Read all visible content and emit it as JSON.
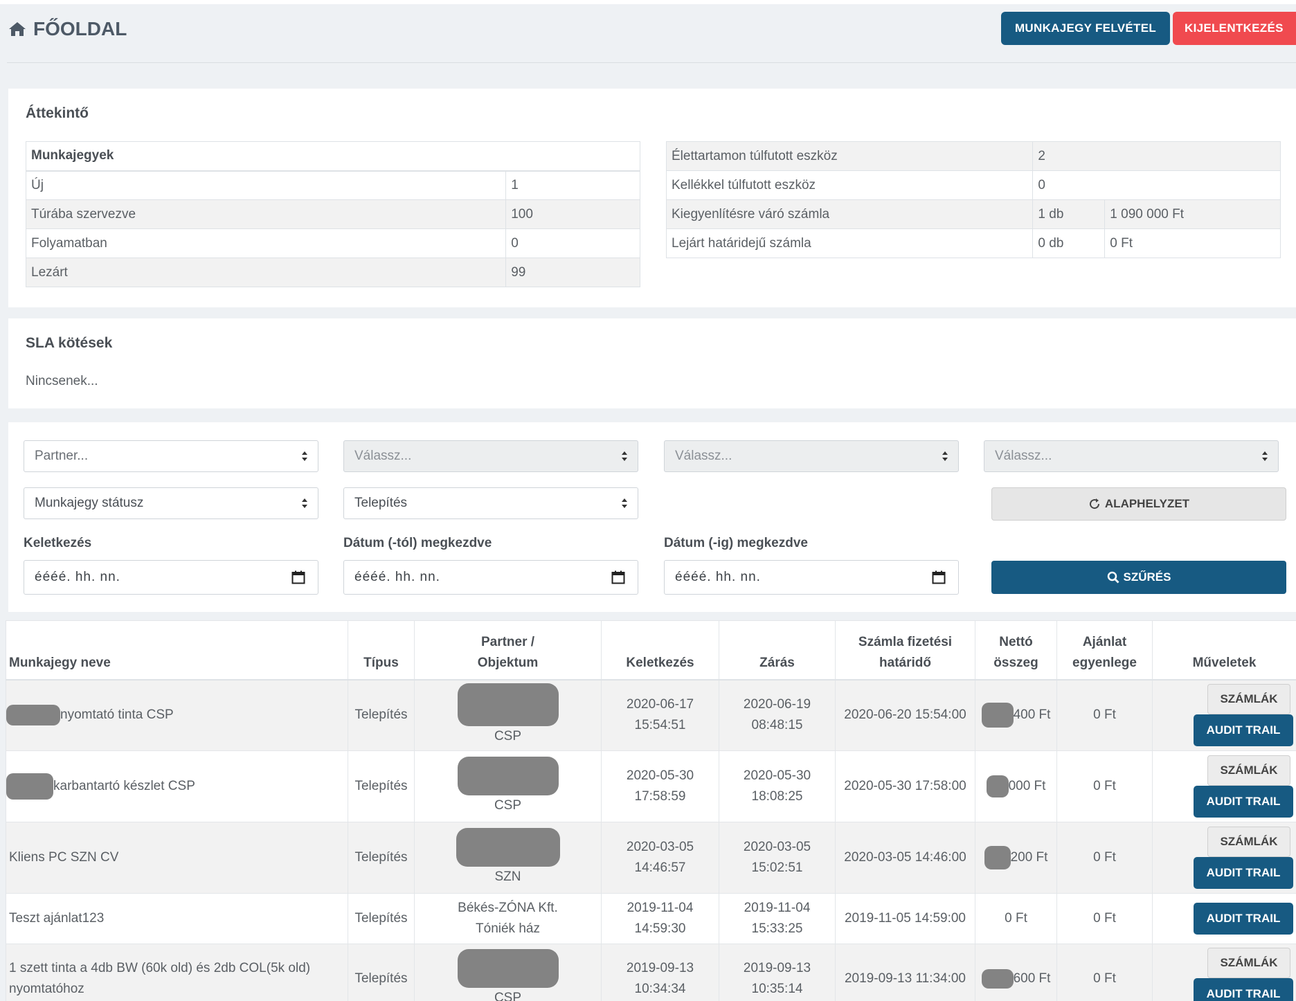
{
  "header": {
    "title": "FŐOLDAL",
    "new_ticket_label": "MUNKAJEGY FELVÉTEL",
    "logout_label": "KIJELENTKEZÉS"
  },
  "overview": {
    "title": "Áttekintő",
    "tickets_heading": "Munkajegyek",
    "tickets": [
      {
        "label": "Új",
        "value": "1"
      },
      {
        "label": "Túrába szervezve",
        "value": "100"
      },
      {
        "label": "Folyamatban",
        "value": "0"
      },
      {
        "label": "Lezárt",
        "value": "99"
      }
    ],
    "assets": [
      {
        "label": "Élettartamon túlfutott eszköz",
        "value": "2",
        "amount": ""
      },
      {
        "label": "Kellékkel túlfutott eszköz",
        "value": "0",
        "amount": ""
      },
      {
        "label": "Kiegyenlítésre váró számla",
        "value": "1 db",
        "amount": "1 090 000 Ft"
      },
      {
        "label": "Lejárt határidejű számla",
        "value": "0 db",
        "amount": "0 Ft"
      }
    ]
  },
  "sla": {
    "title": "SLA kötések",
    "empty_text": "Nincsenek..."
  },
  "filters": {
    "partner_placeholder": "Partner...",
    "select2_placeholder": "Válassz...",
    "select3_placeholder": "Válassz...",
    "select4_placeholder": "Válassz...",
    "status_placeholder": "Munkajegy státusz",
    "type_value": "Telepítés",
    "reset_label": "ALAPHELYZET",
    "created_label": "Keletkezés",
    "from_label": "Dátum (-tól) megkezdve",
    "to_label": "Dátum (-ig) megkezdve",
    "date_placeholder": "éééé. hh. nn.",
    "filter_label": "SZŰRÉS"
  },
  "table": {
    "headers": {
      "name": "Munkajegy neve",
      "type": "Típus",
      "partner_l1": "Partner /",
      "partner_l2": "Objektum",
      "created": "Keletkezés",
      "closed": "Zárás",
      "due_l1": "Számla fizetési",
      "due_l2": "határidő",
      "net_l1": "Nettó",
      "net_l2": "összeg",
      "offer_l1": "Ajánlat",
      "offer_l2": "egyenlege",
      "actions": "Műveletek"
    },
    "invoices_label": "SZÁMLÁK",
    "audit_label": "AUDIT TRAIL",
    "rows": [
      {
        "name": "nyomtató tinta CSP",
        "type": "Telepítés",
        "partner": "CSP",
        "created_date": "2020-06-17",
        "created_time": "15:54:51",
        "closed_date": "2020-06-19",
        "closed_time": "08:48:15",
        "due": "2020-06-20 15:54:00",
        "net": "400 Ft",
        "offer": "0 Ft"
      },
      {
        "name": "karbantartó készlet CSP",
        "type": "Telepítés",
        "partner": "CSP",
        "created_date": "2020-05-30",
        "created_time": "17:58:59",
        "closed_date": "2020-05-30",
        "closed_time": "18:08:25",
        "due": "2020-05-30 17:58:00",
        "net": "000 Ft",
        "offer": "0 Ft"
      },
      {
        "name": "Kliens PC SZN CV",
        "type": "Telepítés",
        "partner": "SZN",
        "created_date": "2020-03-05",
        "created_time": "14:46:57",
        "closed_date": "2020-03-05",
        "closed_time": "15:02:51",
        "due": "2020-03-05 14:46:00",
        "net": "200 Ft",
        "offer": "0 Ft"
      },
      {
        "name": "Teszt ajánlat123",
        "type": "Telepítés",
        "partner_l1": "Békés-ZÓNA Kft.",
        "partner_l2": "Tóniék ház",
        "created_date": "2019-11-04",
        "created_time": "14:59:30",
        "closed_date": "2019-11-04",
        "closed_time": "15:33:25",
        "due": "2019-11-05 14:59:00",
        "net": "0 Ft",
        "offer": "0 Ft"
      },
      {
        "name": "1 szett tinta a 4db BW (60k old) és 2db COL(5k old) nyomtatóhoz",
        "type": "Telepítés",
        "partner": "CSP",
        "created_date": "2019-09-13",
        "created_time": "10:34:34",
        "closed_date": "2019-09-13",
        "closed_time": "10:35:14",
        "due": "2019-09-13 11:34:00",
        "net": "600 Ft",
        "offer": "0 Ft"
      }
    ]
  },
  "colors": {
    "primary": "#175a82",
    "danger": "#f04a4f",
    "background": "#eef1f4"
  }
}
